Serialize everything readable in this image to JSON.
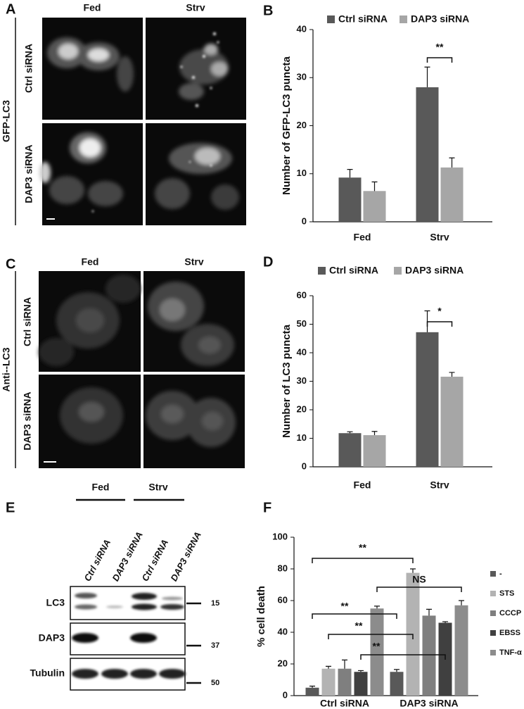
{
  "panel_labels": [
    "A",
    "B",
    "C",
    "D",
    "E",
    "F"
  ],
  "micrographs": [
    {
      "label": "GFP-LC3",
      "columns": [
        "Fed",
        "Strv"
      ],
      "rows": [
        "Ctrl siRNA",
        "DAP3 siRNA"
      ]
    },
    {
      "label": "Anti--LC3",
      "columns": [
        "Fed",
        "Strv"
      ],
      "rows": [
        "Ctrl siRNA",
        "DAP3 siRNA"
      ]
    }
  ],
  "blot": {
    "groups": [
      "Fed",
      "Strv"
    ],
    "lanes": [
      "Ctrl siRNA",
      "DAP3 siRNA",
      "Ctrl siRNA",
      "DAP3 siRNA"
    ],
    "rows": [
      "LC3",
      "DAP3",
      "Tubulin"
    ],
    "markers": [
      15,
      37,
      50
    ]
  },
  "chart_data": [
    {
      "type": "bar",
      "y_label": "Number of GFP-LC3 puncta",
      "categories": [
        "Fed",
        "Strv"
      ],
      "series": [
        {
          "name": "Ctrl siRNA",
          "color": "#595959",
          "values": [
            9.2,
            28
          ],
          "errors": [
            1.7,
            4.2
          ]
        },
        {
          "name": "DAP3 siRNA",
          "color": "#a6a6a6",
          "values": [
            6.4,
            11.3
          ],
          "errors": [
            1.9,
            2
          ]
        }
      ],
      "ylim": [
        0,
        40
      ],
      "yticks": [
        0,
        10,
        20,
        30,
        40
      ],
      "legend": "top",
      "annotations": [
        {
          "text": "**"
        }
      ]
    },
    {
      "type": "bar",
      "y_label": "Number of LC3 puncta",
      "categories": [
        "Fed",
        "Strv"
      ],
      "series": [
        {
          "name": "Ctrl siRNA",
          "color": "#595959",
          "values": [
            11.8,
            47.2
          ],
          "errors": [
            0.5,
            7.5
          ]
        },
        {
          "name": "DAP3 siRNA",
          "color": "#a6a6a6",
          "values": [
            11.1,
            31.6
          ],
          "errors": [
            1.3,
            1.5
          ]
        }
      ],
      "ylim": [
        0,
        60
      ],
      "yticks": [
        0,
        10,
        20,
        30,
        40,
        50,
        60
      ],
      "legend": "top",
      "annotations": [
        {
          "text": "*"
        }
      ]
    },
    {
      "type": "bar",
      "y_label": "% cell death",
      "categories": [
        "Ctrl siRNA",
        "DAP3 siRNA"
      ],
      "series": [
        {
          "name": "-",
          "color": "#595959",
          "values": [
            5,
            15
          ],
          "errors": [
            1,
            1.5
          ]
        },
        {
          "name": "STS",
          "color": "#b3b3b3",
          "values": [
            17,
            77.5
          ],
          "errors": [
            1.5,
            2.5
          ]
        },
        {
          "name": "CCCP",
          "color": "#7f7f7f",
          "values": [
            17,
            50.5
          ],
          "errors": [
            5.5,
            4
          ]
        },
        {
          "name": "EBSS",
          "color": "#404040",
          "values": [
            15,
            46
          ],
          "errors": [
            0.8,
            0.7
          ]
        },
        {
          "name": "TNF-α",
          "color": "#8c8c8c",
          "values": [
            55,
            57
          ],
          "errors": [
            1.5,
            3
          ]
        }
      ],
      "ylim": [
        0,
        100
      ],
      "yticks": [
        0,
        20,
        40,
        60,
        80,
        100
      ],
      "legend": "right",
      "annotations": [
        {
          "text": "**"
        },
        {
          "text": "NS"
        },
        {
          "text": "**"
        },
        {
          "text": "**"
        },
        {
          "text": "**"
        }
      ]
    }
  ]
}
